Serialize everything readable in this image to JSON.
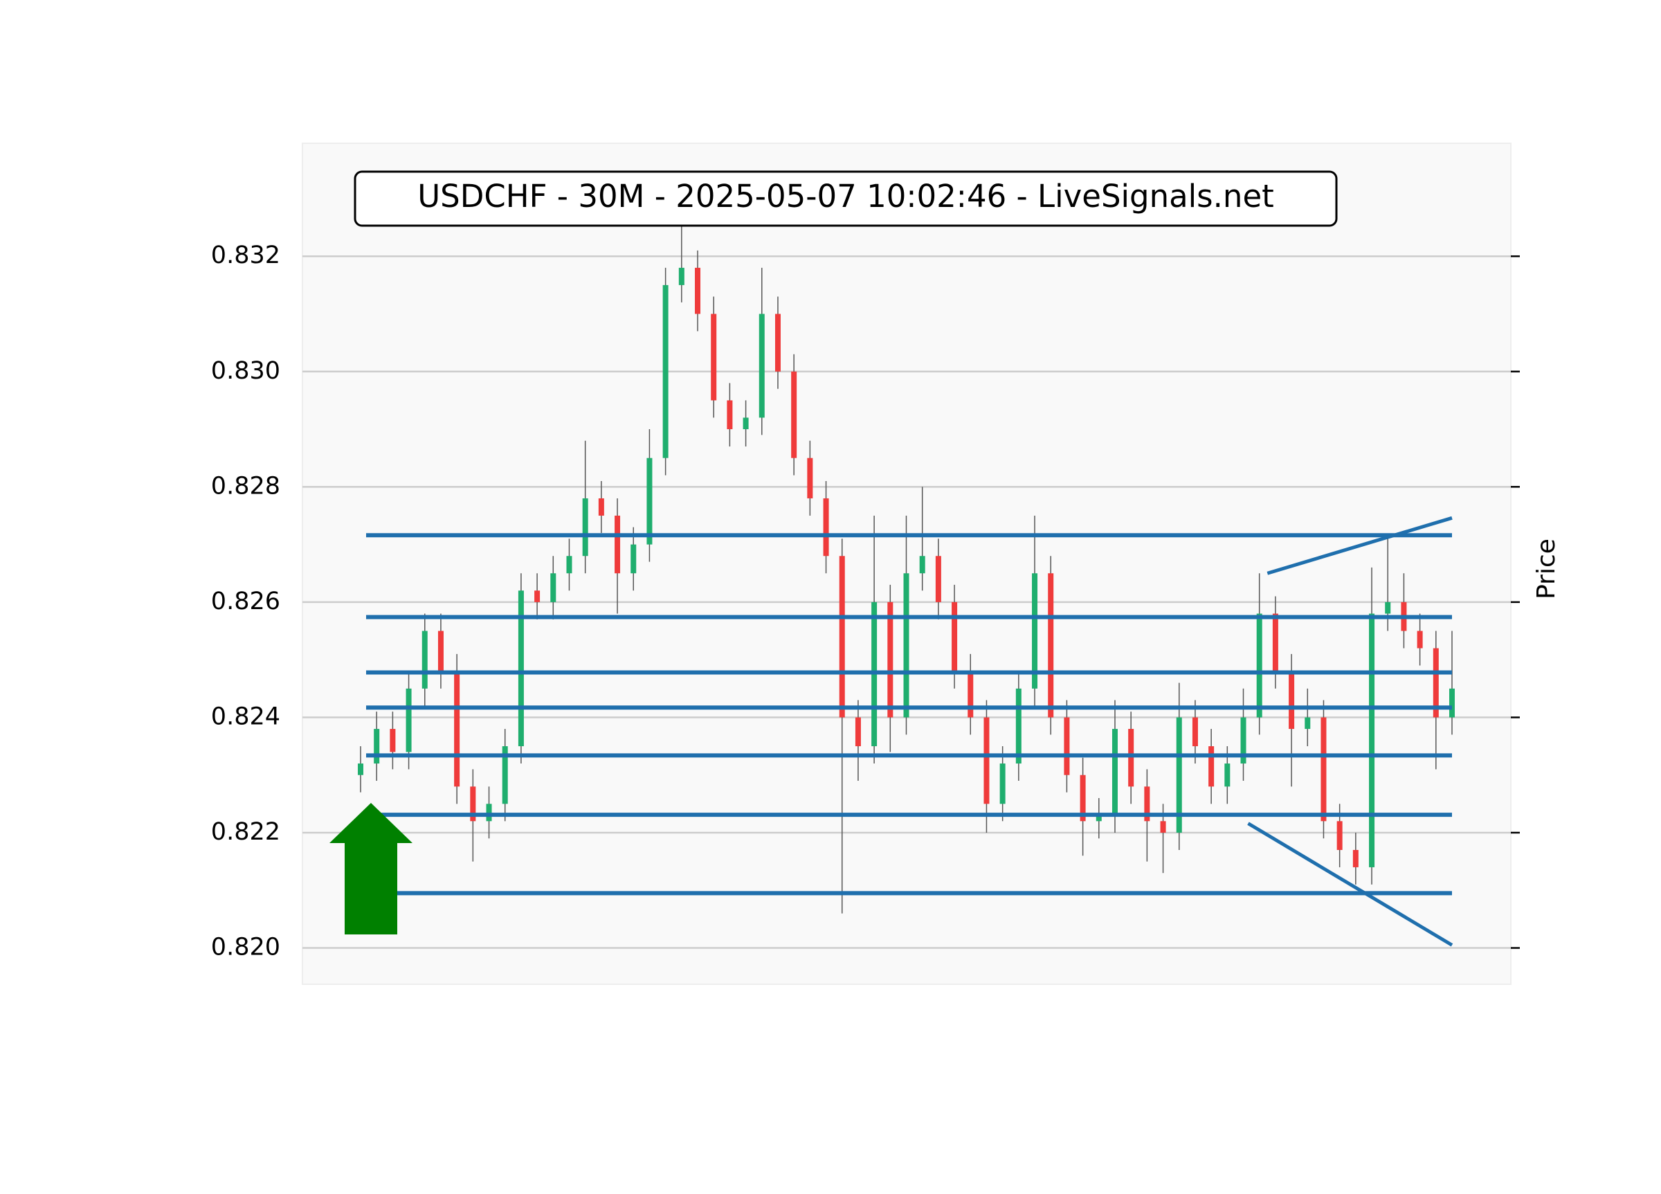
{
  "chart_data": {
    "type": "candlestick",
    "title": "USDCHF - 30M - 2025-05-07 10:02:46 - LiveSignals.net",
    "y_label": "Price",
    "ylim": [
      0.81937,
      0.83396
    ],
    "yticks": [
      {
        "value": 0.82,
        "label": "0.820"
      },
      0.822,
      0.824,
      0.826,
      0.828,
      {
        "value": 0.83,
        "label": "0.830"
      },
      0.832
    ],
    "grid": true,
    "up_color": "#1fae6e",
    "down_color": "#ef3b3b",
    "line_color": "#1f6fad",
    "open": [
      0.823,
      0.8232,
      0.8238,
      0.8234,
      0.8245,
      0.8255,
      0.8248,
      0.8228,
      0.8222,
      0.8225,
      0.8235,
      0.8262,
      0.826,
      0.8265,
      0.8268,
      0.8278,
      0.8275,
      0.8265,
      0.827,
      0.8285,
      0.8315,
      0.8318,
      0.831,
      0.8295,
      0.829,
      0.8292,
      0.831,
      0.83,
      0.8285,
      0.8278,
      0.8268,
      0.824,
      0.8235,
      0.826,
      0.824,
      0.8265,
      0.8268,
      0.826,
      0.8248,
      0.824,
      0.8225,
      0.8232,
      0.8245,
      0.8265,
      0.824,
      0.823,
      0.8222,
      0.8223,
      0.8238,
      0.8228,
      0.8222,
      0.822,
      0.824,
      0.8235,
      0.8228,
      0.8232,
      0.824,
      0.8258,
      0.8248,
      0.8238,
      0.824,
      0.8222,
      0.8217,
      0.8214,
      0.8258,
      0.826,
      0.8255,
      0.8252,
      0.824
    ],
    "high": [
      0.8235,
      0.8241,
      0.8241,
      0.8248,
      0.8258,
      0.8258,
      0.8251,
      0.8231,
      0.8228,
      0.8238,
      0.8265,
      0.8265,
      0.8268,
      0.8271,
      0.8288,
      0.8281,
      0.8278,
      0.8273,
      0.829,
      0.8318,
      0.8326,
      0.8321,
      0.8313,
      0.8298,
      0.8295,
      0.8318,
      0.8313,
      0.8303,
      0.8288,
      0.8281,
      0.8271,
      0.8243,
      0.8275,
      0.8263,
      0.8275,
      0.828,
      0.8271,
      0.8263,
      0.8251,
      0.8243,
      0.8235,
      0.8248,
      0.8275,
      0.8268,
      0.8243,
      0.8233,
      0.8226,
      0.8243,
      0.8241,
      0.8231,
      0.8225,
      0.8246,
      0.8243,
      0.8238,
      0.8235,
      0.8245,
      0.8265,
      0.8261,
      0.8251,
      0.8245,
      0.8243,
      0.8225,
      0.822,
      0.8266,
      0.8271,
      0.8265,
      0.8258,
      0.8255,
      0.8255
    ],
    "low": [
      0.8227,
      0.8229,
      0.8231,
      0.8231,
      0.8242,
      0.8245,
      0.8225,
      0.8215,
      0.8219,
      0.8222,
      0.8232,
      0.8257,
      0.8257,
      0.8262,
      0.8265,
      0.8272,
      0.8258,
      0.8262,
      0.8267,
      0.8282,
      0.8312,
      0.8307,
      0.8292,
      0.8287,
      0.8287,
      0.8289,
      0.8297,
      0.8282,
      0.8275,
      0.8265,
      0.8206,
      0.8229,
      0.8232,
      0.8234,
      0.8237,
      0.8262,
      0.8257,
      0.8245,
      0.8237,
      0.822,
      0.8222,
      0.8229,
      0.8242,
      0.8237,
      0.8227,
      0.8216,
      0.8219,
      0.822,
      0.8225,
      0.8215,
      0.8213,
      0.8217,
      0.8232,
      0.8225,
      0.8225,
      0.8229,
      0.8237,
      0.8245,
      0.8228,
      0.8235,
      0.8219,
      0.8214,
      0.8211,
      0.8211,
      0.8255,
      0.8252,
      0.8249,
      0.8231,
      0.8237
    ],
    "close": [
      0.8232,
      0.8238,
      0.8234,
      0.8245,
      0.8255,
      0.8248,
      0.8228,
      0.8222,
      0.8225,
      0.8235,
      0.8262,
      0.826,
      0.8265,
      0.8268,
      0.8278,
      0.8275,
      0.8265,
      0.827,
      0.8285,
      0.8315,
      0.8318,
      0.831,
      0.8295,
      0.829,
      0.8292,
      0.831,
      0.83,
      0.8285,
      0.8278,
      0.8268,
      0.824,
      0.8235,
      0.826,
      0.824,
      0.8265,
      0.8268,
      0.826,
      0.8248,
      0.824,
      0.8225,
      0.8232,
      0.8245,
      0.8265,
      0.824,
      0.823,
      0.8222,
      0.8223,
      0.8238,
      0.8228,
      0.8222,
      0.822,
      0.824,
      0.8235,
      0.8228,
      0.8232,
      0.824,
      0.8258,
      0.8248,
      0.8238,
      0.824,
      0.8222,
      0.8217,
      0.8214,
      0.8258,
      0.826,
      0.8255,
      0.8252,
      0.824,
      0.8245
    ],
    "levels": [
      0.82716,
      0.82574,
      0.82478,
      0.82417,
      0.82334,
      0.82231,
      0.82095
    ],
    "trendlines": [
      {
        "x": [
          56.5,
          68
        ],
        "y": [
          0.8265,
          0.82746
        ]
      },
      {
        "x": [
          55.3,
          68
        ],
        "y": [
          0.82216,
          0.82005
        ]
      }
    ]
  }
}
